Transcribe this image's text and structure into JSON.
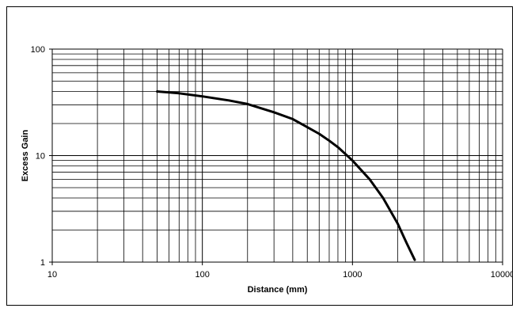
{
  "chart_data": {
    "type": "line",
    "xlabel": "Distance (mm)",
    "ylabel": "Excess Gain",
    "xscale": "log",
    "yscale": "log",
    "xlim": [
      10,
      10000
    ],
    "ylim": [
      1,
      100
    ],
    "x_tick_labels": [
      "10",
      "100",
      "1000",
      "10000"
    ],
    "y_tick_labels": [
      "1",
      "10",
      "100"
    ],
    "grid": true,
    "legend": "none",
    "line_color": "#000000",
    "series": [
      {
        "x": [
          50,
          70,
          100,
          150,
          200,
          300,
          400,
          500,
          600,
          700,
          800,
          1000,
          1300,
          1600,
          2000,
          2300,
          2600
        ],
        "y": [
          40,
          38.5,
          36,
          33,
          30.5,
          25.5,
          22,
          18.5,
          16,
          13.8,
          12,
          9,
          6,
          4,
          2.3,
          1.5,
          1.05
        ]
      }
    ]
  }
}
